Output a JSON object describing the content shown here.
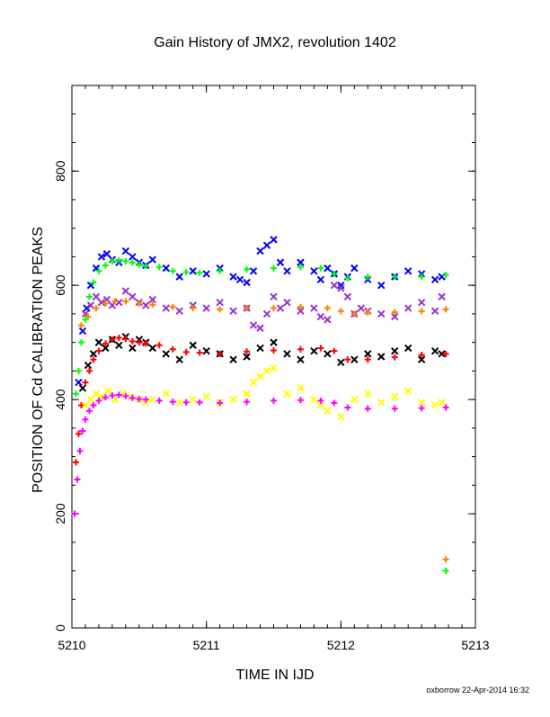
{
  "chart_data": {
    "type": "scatter",
    "title": "Gain History of JMX2, revolution 1402",
    "xlabel": "TIME IN IJD",
    "ylabel": "POSITION OF Cd CALIBRATION PEAKS",
    "footer": "oxborrow 22-Apr-2014 16:32",
    "xlim": [
      5210,
      5213
    ],
    "ylim": [
      0,
      950
    ],
    "x_ticks": [
      5210,
      5211,
      5212,
      5213
    ],
    "y_ticks": [
      0,
      200,
      400,
      600,
      800
    ],
    "x_tick_labels": [
      "5210",
      "5211",
      "5212",
      "5213"
    ],
    "y_tick_labels": [
      "0",
      "200",
      "400",
      "600",
      "800"
    ],
    "grid": false,
    "series": [
      {
        "color": "#0000ff",
        "marker": "x",
        "x": [
          5210.05,
          5210.08,
          5210.11,
          5210.14,
          5210.18,
          5210.22,
          5210.26,
          5210.3,
          5210.35,
          5210.4,
          5210.45,
          5210.5,
          5210.55,
          5210.6,
          5210.7,
          5210.8,
          5210.9,
          5211.0,
          5211.1,
          5211.2,
          5211.25,
          5211.3,
          5211.35,
          5211.4,
          5211.45,
          5211.5,
          5211.55,
          5211.6,
          5211.7,
          5211.8,
          5211.85,
          5211.9,
          5211.95,
          5212.0,
          5212.05,
          5212.1,
          5212.2,
          5212.3,
          5212.4,
          5212.5,
          5212.6,
          5212.7,
          5212.75
        ],
        "y": [
          430,
          520,
          560,
          600,
          630,
          650,
          655,
          645,
          640,
          660,
          650,
          640,
          635,
          645,
          630,
          615,
          625,
          620,
          630,
          615,
          610,
          605,
          625,
          660,
          670,
          680,
          640,
          625,
          640,
          625,
          610,
          630,
          620,
          600,
          615,
          630,
          610,
          600,
          615,
          625,
          620,
          610,
          615
        ]
      },
      {
        "color": "#9933cc",
        "marker": "x",
        "x": [
          5210.1,
          5210.14,
          5210.18,
          5210.22,
          5210.26,
          5210.3,
          5210.35,
          5210.4,
          5210.45,
          5210.5,
          5210.55,
          5210.6,
          5210.7,
          5210.8,
          5210.9,
          5211.0,
          5211.1,
          5211.2,
          5211.3,
          5211.35,
          5211.4,
          5211.45,
          5211.5,
          5211.55,
          5211.6,
          5211.7,
          5211.8,
          5211.85,
          5211.9,
          5211.95,
          5212.0,
          5212.05,
          5212.1,
          5212.15,
          5212.2,
          5212.3,
          5212.4,
          5212.5,
          5212.6,
          5212.7,
          5212.75
        ],
        "y": [
          550,
          565,
          580,
          570,
          575,
          565,
          570,
          590,
          580,
          570,
          565,
          575,
          560,
          555,
          565,
          560,
          570,
          555,
          560,
          530,
          525,
          550,
          580,
          560,
          570,
          555,
          560,
          545,
          540,
          600,
          595,
          580,
          550,
          560,
          555,
          550,
          545,
          560,
          570,
          555,
          580
        ]
      },
      {
        "color": "#ff8000",
        "marker": "+",
        "x": [
          5210.07,
          5210.12,
          5210.18,
          5210.25,
          5210.32,
          5210.4,
          5210.5,
          5210.6,
          5210.75,
          5210.9,
          5211.1,
          5211.3,
          5211.5,
          5211.7,
          5211.9,
          5212.0,
          5212.1,
          5212.2,
          5212.4,
          5212.6,
          5212.78,
          5212.78
        ],
        "y": [
          530,
          545,
          560,
          568,
          572,
          572,
          568,
          566,
          562,
          560,
          558,
          560,
          560,
          562,
          560,
          555,
          550,
          552,
          553,
          555,
          558,
          120
        ]
      },
      {
        "color": "#00ff00",
        "marker": "+",
        "x": [
          5210.03,
          5210.05,
          5210.07,
          5210.1,
          5210.13,
          5210.16,
          5210.2,
          5210.25,
          5210.3,
          5210.35,
          5210.4,
          5210.45,
          5210.5,
          5210.55,
          5210.65,
          5210.75,
          5210.85,
          5210.95,
          5211.1,
          5211.3,
          5211.5,
          5211.7,
          5211.85,
          5211.95,
          5212.05,
          5212.2,
          5212.4,
          5212.6,
          5212.78,
          5212.78
        ],
        "y": [
          410,
          450,
          500,
          540,
          580,
          605,
          625,
          635,
          642,
          644,
          642,
          640,
          636,
          634,
          632,
          625,
          623,
          622,
          625,
          628,
          630,
          632,
          630,
          620,
          612,
          615,
          615,
          615,
          618,
          100
        ]
      },
      {
        "color": "#000000",
        "marker": "x",
        "x": [
          5210.08,
          5210.12,
          5210.16,
          5210.2,
          5210.25,
          5210.3,
          5210.35,
          5210.4,
          5210.45,
          5210.5,
          5210.55,
          5210.6,
          5210.7,
          5210.8,
          5210.9,
          5211.0,
          5211.1,
          5211.2,
          5211.3,
          5211.4,
          5211.5,
          5211.6,
          5211.7,
          5211.8,
          5211.9,
          5212.0,
          5212.1,
          5212.2,
          5212.3,
          5212.4,
          5212.5,
          5212.6,
          5212.7,
          5212.75
        ],
        "y": [
          420,
          460,
          480,
          500,
          490,
          505,
          495,
          510,
          490,
          505,
          500,
          490,
          480,
          470,
          495,
          485,
          480,
          470,
          475,
          490,
          500,
          480,
          470,
          485,
          480,
          465,
          470,
          480,
          475,
          485,
          490,
          470,
          485,
          480
        ]
      },
      {
        "color": "#ff0000",
        "marker": "+",
        "x": [
          5210.03,
          5210.05,
          5210.07,
          5210.1,
          5210.13,
          5210.16,
          5210.2,
          5210.25,
          5210.3,
          5210.35,
          5210.4,
          5210.45,
          5210.5,
          5210.55,
          5210.65,
          5210.75,
          5210.85,
          5210.95,
          5211.1,
          5211.3,
          5211.5,
          5211.7,
          5211.85,
          5211.95,
          5212.05,
          5212.2,
          5212.4,
          5212.6,
          5212.78
        ],
        "y": [
          290,
          340,
          390,
          430,
          450,
          470,
          485,
          498,
          505,
          508,
          506,
          502,
          500,
          498,
          495,
          488,
          483,
          482,
          480,
          484,
          486,
          488,
          490,
          485,
          470,
          470,
          474,
          478,
          480
        ]
      },
      {
        "color": "#ffff00",
        "marker": "x",
        "x": [
          5210.1,
          5210.14,
          5210.18,
          5210.22,
          5210.27,
          5210.32,
          5210.38,
          5210.44,
          5210.5,
          5210.55,
          5210.6,
          5210.7,
          5210.8,
          5210.9,
          5211.0,
          5211.1,
          5211.2,
          5211.3,
          5211.35,
          5211.4,
          5211.45,
          5211.5,
          5211.6,
          5211.7,
          5211.8,
          5211.85,
          5211.9,
          5212.0,
          5212.1,
          5212.2,
          5212.3,
          5212.4,
          5212.5,
          5212.6,
          5212.7,
          5212.75
        ],
        "y": [
          390,
          400,
          410,
          405,
          415,
          400,
          410,
          405,
          400,
          395,
          400,
          410,
          395,
          400,
          405,
          395,
          400,
          410,
          430,
          440,
          450,
          455,
          410,
          420,
          400,
          390,
          380,
          370,
          400,
          410,
          395,
          405,
          415,
          395,
          390,
          395
        ]
      },
      {
        "color": "#ff00ff",
        "marker": "+",
        "x": [
          5210.02,
          5210.04,
          5210.06,
          5210.08,
          5210.1,
          5210.13,
          5210.16,
          5210.2,
          5210.25,
          5210.3,
          5210.35,
          5210.4,
          5210.45,
          5210.5,
          5210.55,
          5210.65,
          5210.75,
          5210.85,
          5210.95,
          5211.1,
          5211.3,
          5211.5,
          5211.7,
          5211.85,
          5211.95,
          5212.05,
          5212.2,
          5212.4,
          5212.6,
          5212.78
        ],
        "y": [
          200,
          260,
          310,
          345,
          365,
          380,
          390,
          398,
          404,
          407,
          408,
          406,
          403,
          401,
          400,
          398,
          396,
          395,
          395,
          394,
          396,
          398,
          399,
          398,
          394,
          386,
          384,
          384,
          385,
          386
        ]
      }
    ]
  }
}
